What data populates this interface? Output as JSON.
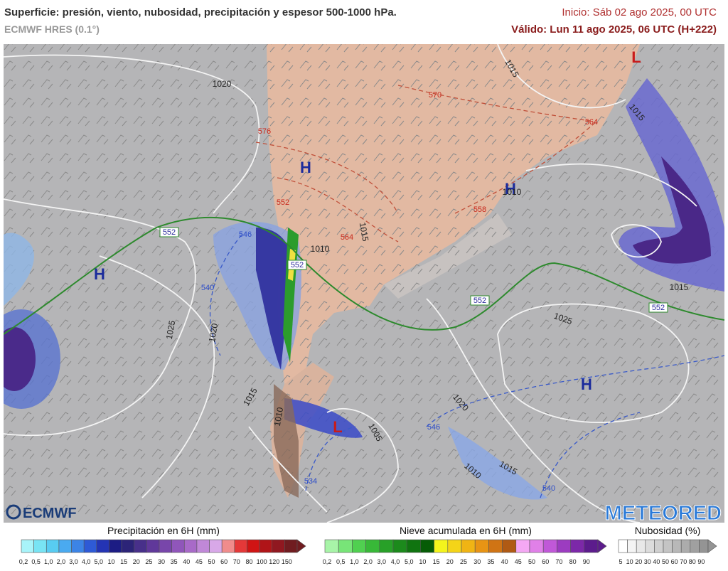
{
  "header": {
    "title": "Superficie: presión, viento, nubosidad, precipitación y espesor 500-1000 hPa.",
    "model": "ECMWF HRES (0.1°)",
    "init": "Inicio: Sáb 02 ago 2025, 00 UTC",
    "valid": "Válido: Lun 11 ago 2025, 06 UTC (H+222)"
  },
  "map": {
    "highs": [
      "H",
      "H",
      "H",
      "H"
    ],
    "lows": [
      "L",
      "L"
    ],
    "isobar_labels": [
      "1020",
      "1015",
      "1015",
      "1010",
      "1010",
      "1015",
      "1025",
      "1020",
      "1015",
      "1010",
      "1005",
      "1020",
      "1010",
      "1015",
      "1025",
      "1015"
    ],
    "thickness_warm": [
      "576",
      "570",
      "564",
      "564",
      "558",
      "552"
    ],
    "thickness_cold": [
      "546",
      "540",
      "546",
      "540",
      "534"
    ],
    "thickness_552": [
      "552",
      "552",
      "552",
      "552"
    ]
  },
  "logos": {
    "left": "ECMWF",
    "right": "METEORED"
  },
  "legends": [
    {
      "title": "Precipitación en 6H (mm)",
      "labels": [
        "0,2",
        "0,5",
        "1,0",
        "2,0",
        "3,0",
        "4,0",
        "5,0",
        "10",
        "15",
        "20",
        "25",
        "30",
        "35",
        "40",
        "45",
        "50",
        "60",
        "70",
        "80",
        "100",
        "120",
        "150"
      ],
      "colors": [
        "#a8f4fa",
        "#78e4f4",
        "#58ccf2",
        "#4aaaf0",
        "#3c84e6",
        "#2e5ad6",
        "#2434b4",
        "#1c1c84",
        "#2c2478",
        "#48308a",
        "#60389a",
        "#7846aa",
        "#9056ba",
        "#a86ac8",
        "#c088d8",
        "#d8a8e8",
        "#f08c8c",
        "#e43838",
        "#d01414",
        "#b01418",
        "#901820",
        "#701c20"
      ]
    },
    {
      "title": "Nieve acumulada en 6H (mm)",
      "labels": [
        "0,2",
        "0,5",
        "1,0",
        "2,0",
        "3,0",
        "4,0",
        "5,0",
        "10",
        "15",
        "20",
        "25",
        "30",
        "35",
        "40",
        "45",
        "50",
        "60",
        "70",
        "80",
        "90"
      ],
      "colors": [
        "#a8f4a8",
        "#78e478",
        "#50d050",
        "#38b838",
        "#28a028",
        "#1c8a1c",
        "#107410",
        "#065c06",
        "#f4f41c",
        "#f4d418",
        "#f0b414",
        "#e89414",
        "#d07414",
        "#b05a14",
        "#f4a8f4",
        "#e080e8",
        "#c058d8",
        "#9c3cc0",
        "#7c28a8",
        "#5c1c8c"
      ]
    },
    {
      "title": "Nubosidad (%)",
      "labels": [
        "5",
        "10",
        "20",
        "30",
        "40",
        "50",
        "60",
        "70",
        "80",
        "90"
      ],
      "colors": [
        "#ffffff",
        "#f4f4f4",
        "#e8e8e8",
        "#dcdcdc",
        "#d0d0d0",
        "#c4c4c4",
        "#b8b8b8",
        "#acacac",
        "#a0a0a0",
        "#949494"
      ]
    }
  ]
}
